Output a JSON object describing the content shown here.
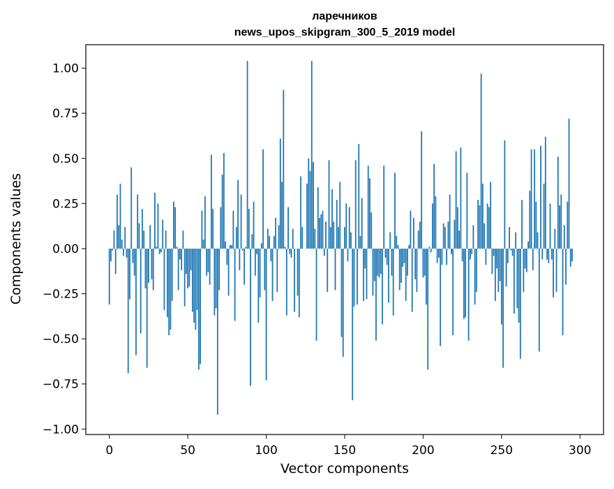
{
  "chart_data": {
    "type": "bar",
    "title_line1": "ларечников",
    "title_line2": "news_upos_skipgram_300_5_2019 model",
    "xlabel": "Vector components",
    "ylabel": "Components values",
    "xlim": [
      -15,
      315
    ],
    "ylim": [
      -1.03,
      1.13
    ],
    "xticks": [
      0,
      50,
      100,
      150,
      200,
      250,
      300
    ],
    "xtick_labels": [
      "0",
      "50",
      "100",
      "150",
      "200",
      "250",
      "300"
    ],
    "yticks": [
      1.0,
      0.75,
      0.5,
      0.25,
      0.0,
      -0.25,
      -0.5,
      -0.75,
      -1.0
    ],
    "ytick_labels": [
      "1.00",
      "0.75",
      "0.50",
      "0.25",
      "0.00",
      "−0.25",
      "−0.50",
      "−0.75",
      "−1.00"
    ],
    "bar_color": "#1f77b4",
    "grid": false,
    "values": [
      -0.31,
      -0.07,
      -0.01,
      0.1,
      -0.14,
      0.3,
      0.13,
      0.36,
      0.05,
      -0.04,
      0.12,
      -0.05,
      -0.69,
      -0.28,
      0.45,
      -0.08,
      -0.15,
      -0.59,
      0.3,
      0.14,
      -0.47,
      0.22,
      0.1,
      -0.22,
      -0.66,
      -0.19,
      0.13,
      -0.17,
      -0.23,
      0.31,
      0.01,
      0.25,
      -0.03,
      -0.02,
      0.16,
      -0.34,
      0.1,
      -0.38,
      -0.48,
      -0.45,
      -0.29,
      0.26,
      0.23,
      0.01,
      -0.23,
      -0.06,
      -0.12,
      0.1,
      -0.32,
      -0.14,
      -0.22,
      -0.21,
      -0.12,
      -0.35,
      -0.41,
      -0.45,
      -0.34,
      -0.67,
      -0.64,
      0.21,
      0.05,
      0.29,
      -0.15,
      -0.13,
      -0.2,
      0.52,
      0.22,
      -0.37,
      -0.33,
      -0.92,
      -0.23,
      0.23,
      0.41,
      0.53,
      0.04,
      -0.09,
      -0.26,
      0.02,
      0.02,
      0.21,
      -0.4,
      0.12,
      0.38,
      -0.12,
      0.3,
      -0.01,
      -0.2,
      0.01,
      1.04,
      0.22,
      -0.76,
      0.08,
      0.26,
      -0.15,
      -0.03,
      -0.41,
      -0.27,
      0.03,
      0.55,
      -0.23,
      -0.73,
      0.11,
      0.07,
      -0.07,
      -0.29,
      0.07,
      0.17,
      -0.24,
      0.13,
      0.61,
      0.37,
      0.88,
      0.01,
      -0.37,
      0.23,
      -0.03,
      -0.05,
      0.11,
      -0.35,
      0.0,
      -0.26,
      -0.38,
      0.4,
      0.12,
      0.0,
      0.0,
      0.36,
      0.5,
      0.43,
      1.04,
      0.48,
      0.11,
      -0.51,
      0.34,
      0.17,
      0.19,
      0.21,
      -0.04,
      0.15,
      -0.24,
      0.49,
      0.12,
      0.33,
      0.15,
      -0.23,
      0.27,
      0.12,
      0.37,
      -0.49,
      -0.6,
      0.12,
      0.25,
      -0.07,
      0.23,
      0.09,
      -0.84,
      -0.32,
      0.49,
      -0.31,
      0.58,
      0.07,
      0.28,
      -0.29,
      -0.11,
      -0.28,
      0.46,
      0.39,
      0.2,
      -0.26,
      -0.18,
      -0.51,
      -0.15,
      -0.16,
      -0.14,
      -0.42,
      0.46,
      -0.05,
      -0.09,
      -0.3,
      0.09,
      -0.15,
      -0.37,
      0.42,
      0.07,
      0.02,
      -0.23,
      -0.19,
      -0.1,
      -0.08,
      -0.29,
      -0.15,
      0.02,
      0.21,
      -0.35,
      0.17,
      -0.17,
      -0.24,
      0.1,
      0.15,
      0.65,
      -0.16,
      -0.15,
      -0.31,
      -0.67,
      0.01,
      -0.02,
      0.25,
      0.47,
      0.29,
      -0.08,
      -0.05,
      -0.54,
      -0.09,
      0.14,
      0.12,
      -0.09,
      0.15,
      0.3,
      -0.03,
      -0.48,
      0.16,
      0.54,
      0.23,
      0.1,
      0.56,
      -0.07,
      -0.39,
      -0.38,
      0.42,
      -0.51,
      -0.06,
      -0.03,
      0.13,
      -0.31,
      -0.24,
      0.27,
      0.24,
      0.97,
      0.36,
      0.14,
      -0.09,
      0.25,
      0.23,
      0.37,
      -0.14,
      -0.04,
      -0.29,
      -0.11,
      -0.24,
      -0.18,
      -0.42,
      -0.66,
      0.6,
      -0.21,
      -0.08,
      0.12,
      -0.01,
      -0.04,
      -0.36,
      0.09,
      -0.33,
      -0.41,
      -0.61,
      0.27,
      -0.24,
      -0.11,
      -0.13,
      0.04,
      0.32,
      0.55,
      -0.12,
      0.55,
      0.26,
      0.09,
      -0.57,
      0.57,
      -0.06,
      0.36,
      0.62,
      -0.06,
      -0.08,
      0.25,
      -0.06,
      -0.27,
      0.11,
      -0.24,
      0.51,
      0.24,
      0.3,
      -0.48,
      0.13,
      -0.2,
      0.26,
      0.72,
      -0.1,
      -0.07
    ]
  }
}
